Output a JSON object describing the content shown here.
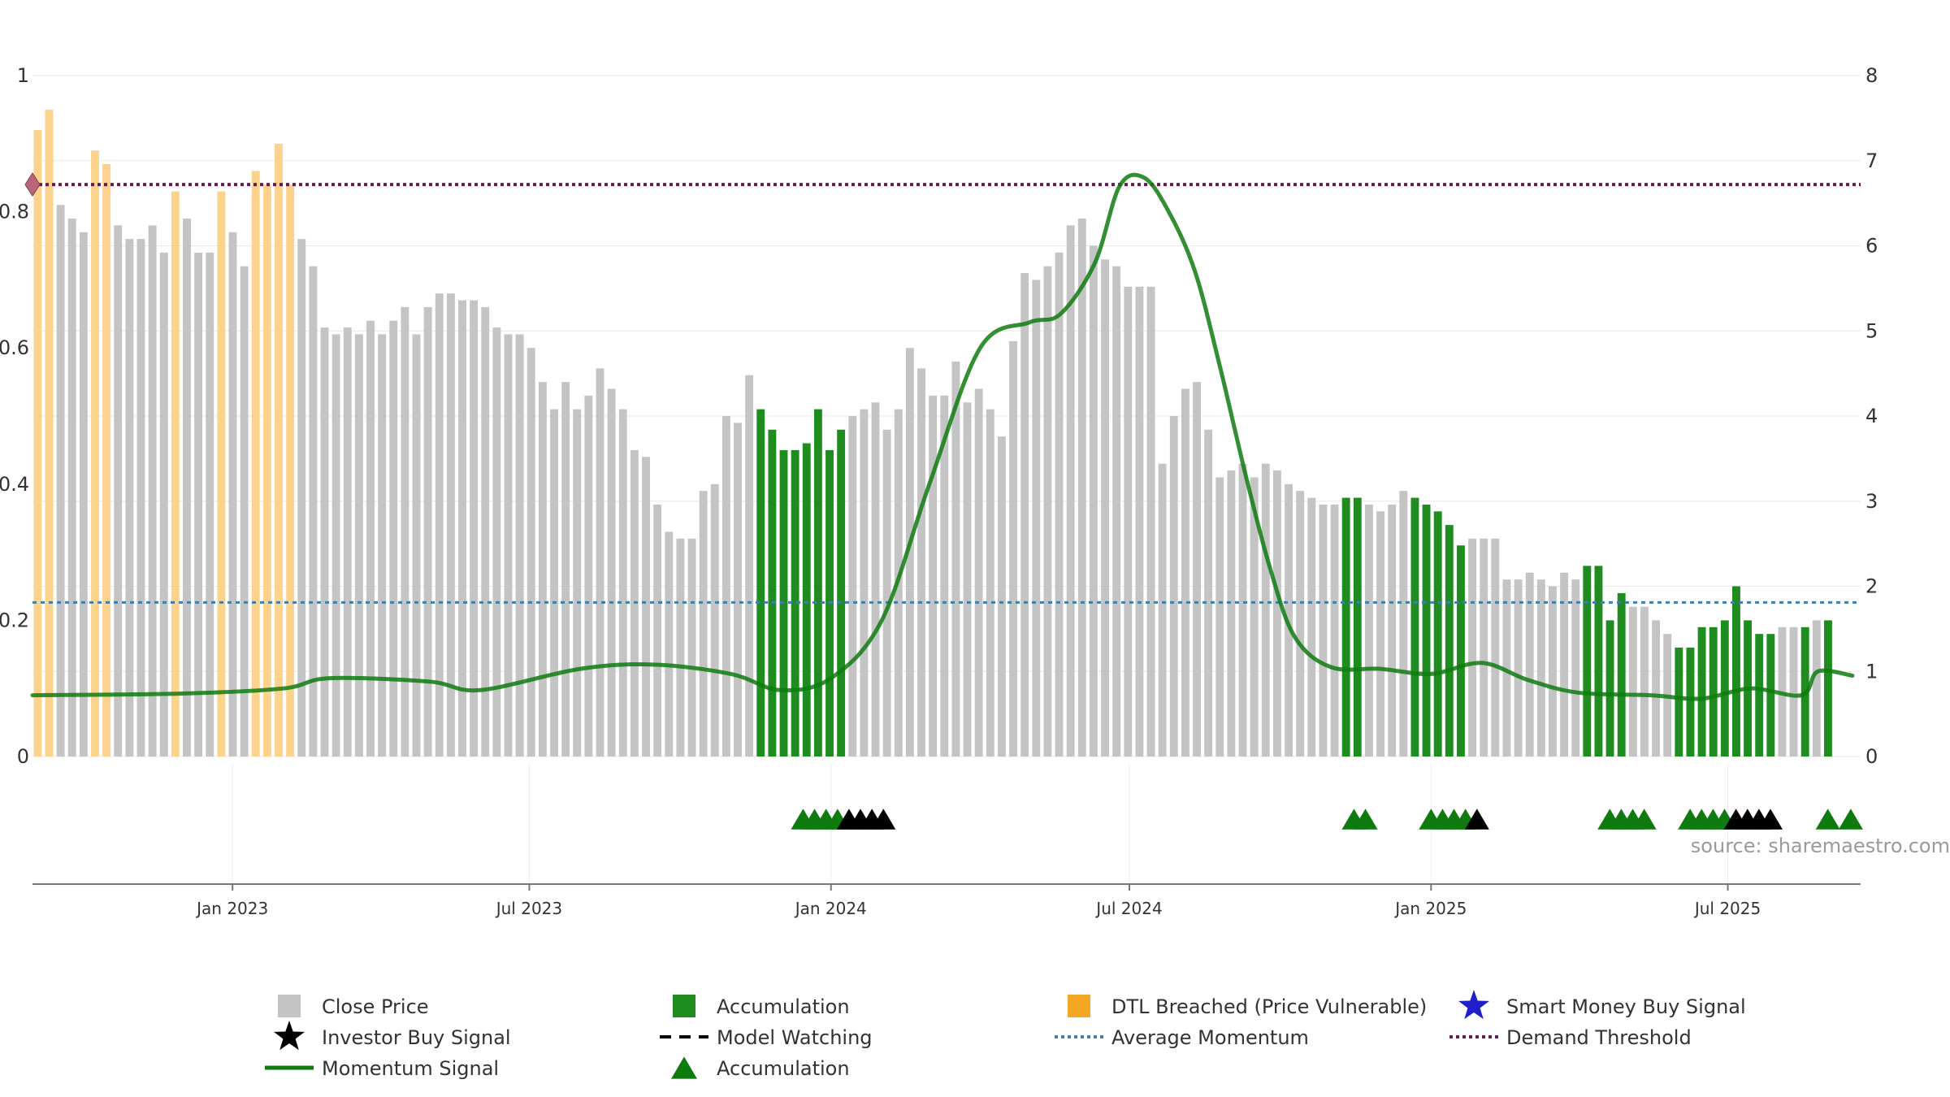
{
  "chart_data": {
    "type": "bar",
    "title": "",
    "xlabel": "",
    "ylabel": "",
    "left_axis": {
      "ylim": [
        0,
        1
      ],
      "ticks": [
        "0",
        "0.2",
        "0.4",
        "0.6",
        "0.8",
        "1"
      ]
    },
    "right_axis": {
      "ylim": [
        0,
        8
      ],
      "ticks": [
        "0",
        "1",
        "2",
        "3",
        "4",
        "5",
        "6",
        "7",
        "8"
      ]
    },
    "x_range": [
      "2022-09-01",
      "2025-09-20"
    ],
    "x_ticks": [
      {
        "date": "2023-01-01",
        "label": "Jan 2023"
      },
      {
        "date": "2023-07-01",
        "label": "Jul 2023"
      },
      {
        "date": "2024-01-01",
        "label": "Jan 2024"
      },
      {
        "date": "2024-07-01",
        "label": "Jul 2024"
      },
      {
        "date": "2025-01-01",
        "label": "Jan 2025"
      },
      {
        "date": "2025-07-01",
        "label": "Jul 2025"
      }
    ],
    "grid": true,
    "bar_start": "2022-09-01",
    "bar_interval_days": 7,
    "bar_values": [
      0.92,
      0.95,
      0.81,
      0.79,
      0.77,
      0.89,
      0.87,
      0.78,
      0.76,
      0.76,
      0.78,
      0.74,
      0.83,
      0.79,
      0.74,
      0.74,
      0.83,
      0.77,
      0.72,
      0.86,
      0.84,
      0.9,
      0.84,
      0.76,
      0.72,
      0.63,
      0.62,
      0.63,
      0.62,
      0.64,
      0.62,
      0.64,
      0.66,
      0.62,
      0.66,
      0.68,
      0.68,
      0.67,
      0.67,
      0.66,
      0.63,
      0.62,
      0.62,
      0.6,
      0.55,
      0.51,
      0.55,
      0.51,
      0.53,
      0.57,
      0.54,
      0.51,
      0.45,
      0.44,
      0.37,
      0.33,
      0.32,
      0.32,
      0.39,
      0.4,
      0.5,
      0.49,
      0.56,
      0.51,
      0.48,
      0.45,
      0.45,
      0.46,
      0.51,
      0.45,
      0.48,
      0.5,
      0.51,
      0.52,
      0.48,
      0.51,
      0.6,
      0.57,
      0.53,
      0.53,
      0.58,
      0.52,
      0.54,
      0.51,
      0.47,
      0.61,
      0.71,
      0.7,
      0.72,
      0.74,
      0.78,
      0.79,
      0.75,
      0.73,
      0.72,
      0.69,
      0.69,
      0.69,
      0.43,
      0.5,
      0.54,
      0.55,
      0.48,
      0.41,
      0.42,
      0.43,
      0.41,
      0.43,
      0.42,
      0.4,
      0.39,
      0.38,
      0.37,
      0.37,
      0.38,
      0.38,
      0.37,
      0.36,
      0.37,
      0.39,
      0.38,
      0.37,
      0.36,
      0.34,
      0.31,
      0.32,
      0.32,
      0.32,
      0.26,
      0.26,
      0.27,
      0.26,
      0.25,
      0.27,
      0.26,
      0.28,
      0.28,
      0.2,
      0.24,
      0.22,
      0.22,
      0.2,
      0.18,
      0.16,
      0.16,
      0.19,
      0.19,
      0.2,
      0.25,
      0.2,
      0.18,
      0.18,
      0.19,
      0.19,
      0.19,
      0.2,
      0.2
    ],
    "accumulation_bar_ranges": [
      [
        63,
        70
      ],
      [
        114,
        115
      ],
      [
        120,
        124
      ],
      [
        135,
        138
      ],
      [
        143,
        151
      ],
      [
        154,
        154
      ],
      [
        156,
        156
      ]
    ],
    "dtl_breached_bar_indices": [
      0,
      1,
      5,
      6,
      12,
      16,
      19,
      20,
      21,
      22
    ],
    "momentum_signal": [
      {
        "date": "2022-09-01",
        "value": 0.72
      },
      {
        "date": "2022-12-01",
        "value": 0.74
      },
      {
        "date": "2023-02-01",
        "value": 0.8
      },
      {
        "date": "2023-03-01",
        "value": 0.92
      },
      {
        "date": "2023-05-01",
        "value": 0.88
      },
      {
        "date": "2023-06-01",
        "value": 0.78
      },
      {
        "date": "2023-08-01",
        "value": 1.03
      },
      {
        "date": "2023-09-15",
        "value": 1.08
      },
      {
        "date": "2023-11-01",
        "value": 0.97
      },
      {
        "date": "2023-12-01",
        "value": 0.78
      },
      {
        "date": "2024-01-01",
        "value": 0.92
      },
      {
        "date": "2024-02-01",
        "value": 1.6
      },
      {
        "date": "2024-03-01",
        "value": 3.2
      },
      {
        "date": "2024-04-01",
        "value": 4.8
      },
      {
        "date": "2024-05-01",
        "value": 5.1
      },
      {
        "date": "2024-05-20",
        "value": 5.2
      },
      {
        "date": "2024-06-10",
        "value": 5.8
      },
      {
        "date": "2024-06-25",
        "value": 6.7
      },
      {
        "date": "2024-07-10",
        "value": 6.8
      },
      {
        "date": "2024-07-25",
        "value": 6.4
      },
      {
        "date": "2024-08-10",
        "value": 5.7
      },
      {
        "date": "2024-08-25",
        "value": 4.6
      },
      {
        "date": "2024-09-10",
        "value": 3.3
      },
      {
        "date": "2024-09-25",
        "value": 2.2
      },
      {
        "date": "2024-10-10",
        "value": 1.4
      },
      {
        "date": "2024-11-01",
        "value": 1.05
      },
      {
        "date": "2024-12-01",
        "value": 1.03
      },
      {
        "date": "2025-01-01",
        "value": 0.97
      },
      {
        "date": "2025-02-01",
        "value": 1.1
      },
      {
        "date": "2025-03-01",
        "value": 0.9
      },
      {
        "date": "2025-04-01",
        "value": 0.75
      },
      {
        "date": "2025-05-15",
        "value": 0.72
      },
      {
        "date": "2025-06-15",
        "value": 0.68
      },
      {
        "date": "2025-07-15",
        "value": 0.8
      },
      {
        "date": "2025-08-15",
        "value": 0.72
      },
      {
        "date": "2025-08-25",
        "value": 1.0
      },
      {
        "date": "2025-09-15",
        "value": 0.95
      }
    ],
    "average_momentum": 1.81,
    "demand_threshold": 6.72,
    "accumulation_triangles": [
      "2023-12-15",
      "2023-12-22",
      "2023-12-29",
      "2024-01-05",
      "2024-11-15",
      "2024-11-22",
      "2025-01-01",
      "2025-01-08",
      "2025-01-15",
      "2025-01-22",
      "2025-04-20",
      "2025-04-27",
      "2025-05-04",
      "2025-05-11",
      "2025-06-08",
      "2025-06-15",
      "2025-06-22",
      "2025-06-29",
      "2025-08-31",
      "2025-09-14"
    ],
    "investor_buy_signals": [
      "2024-01-12",
      "2024-01-19",
      "2024-01-26",
      "2024-02-02",
      "2025-01-29",
      "2025-07-06",
      "2025-07-13",
      "2025-07-20",
      "2025-07-27"
    ],
    "start_marker_value": 6.72,
    "colors": {
      "close_price": "#c4c4c4",
      "accumulation": "#1e8c1e",
      "dtl_breached": "#fbd38d",
      "momentum": "#0f7b0f",
      "average_momentum": "#3f7fa8",
      "demand_threshold": "#6b1757",
      "investor_buy": "#000000",
      "smart_money": "#1f1fcc",
      "start_marker": "#b9657b"
    },
    "legend_position": "bottom",
    "legend": [
      {
        "label": "Close Price",
        "symbol": "square",
        "color": "#c4c4c4"
      },
      {
        "label": "Accumulation",
        "symbol": "square",
        "color": "#1e8c1e"
      },
      {
        "label": "DTL Breached (Price Vulnerable)",
        "symbol": "square",
        "color": "#f5a623"
      },
      {
        "label": "Smart Money Buy Signal",
        "symbol": "star",
        "color": "#1f1fcc"
      },
      {
        "label": "Investor Buy Signal",
        "symbol": "star",
        "color": "#000000"
      },
      {
        "label": "Model Watching",
        "symbol": "dashed",
        "color": "#000000"
      },
      {
        "label": "Average Momentum",
        "symbol": "dotted",
        "color": "#3f7fa8"
      },
      {
        "label": "Demand Threshold",
        "symbol": "dotted",
        "color": "#6b1757"
      },
      {
        "label": "Momentum Signal",
        "symbol": "line",
        "color": "#0f7b0f"
      },
      {
        "label": "Accumulation",
        "symbol": "triangle",
        "color": "#0f7b0f"
      }
    ],
    "source": "source: sharemaestro.com"
  }
}
